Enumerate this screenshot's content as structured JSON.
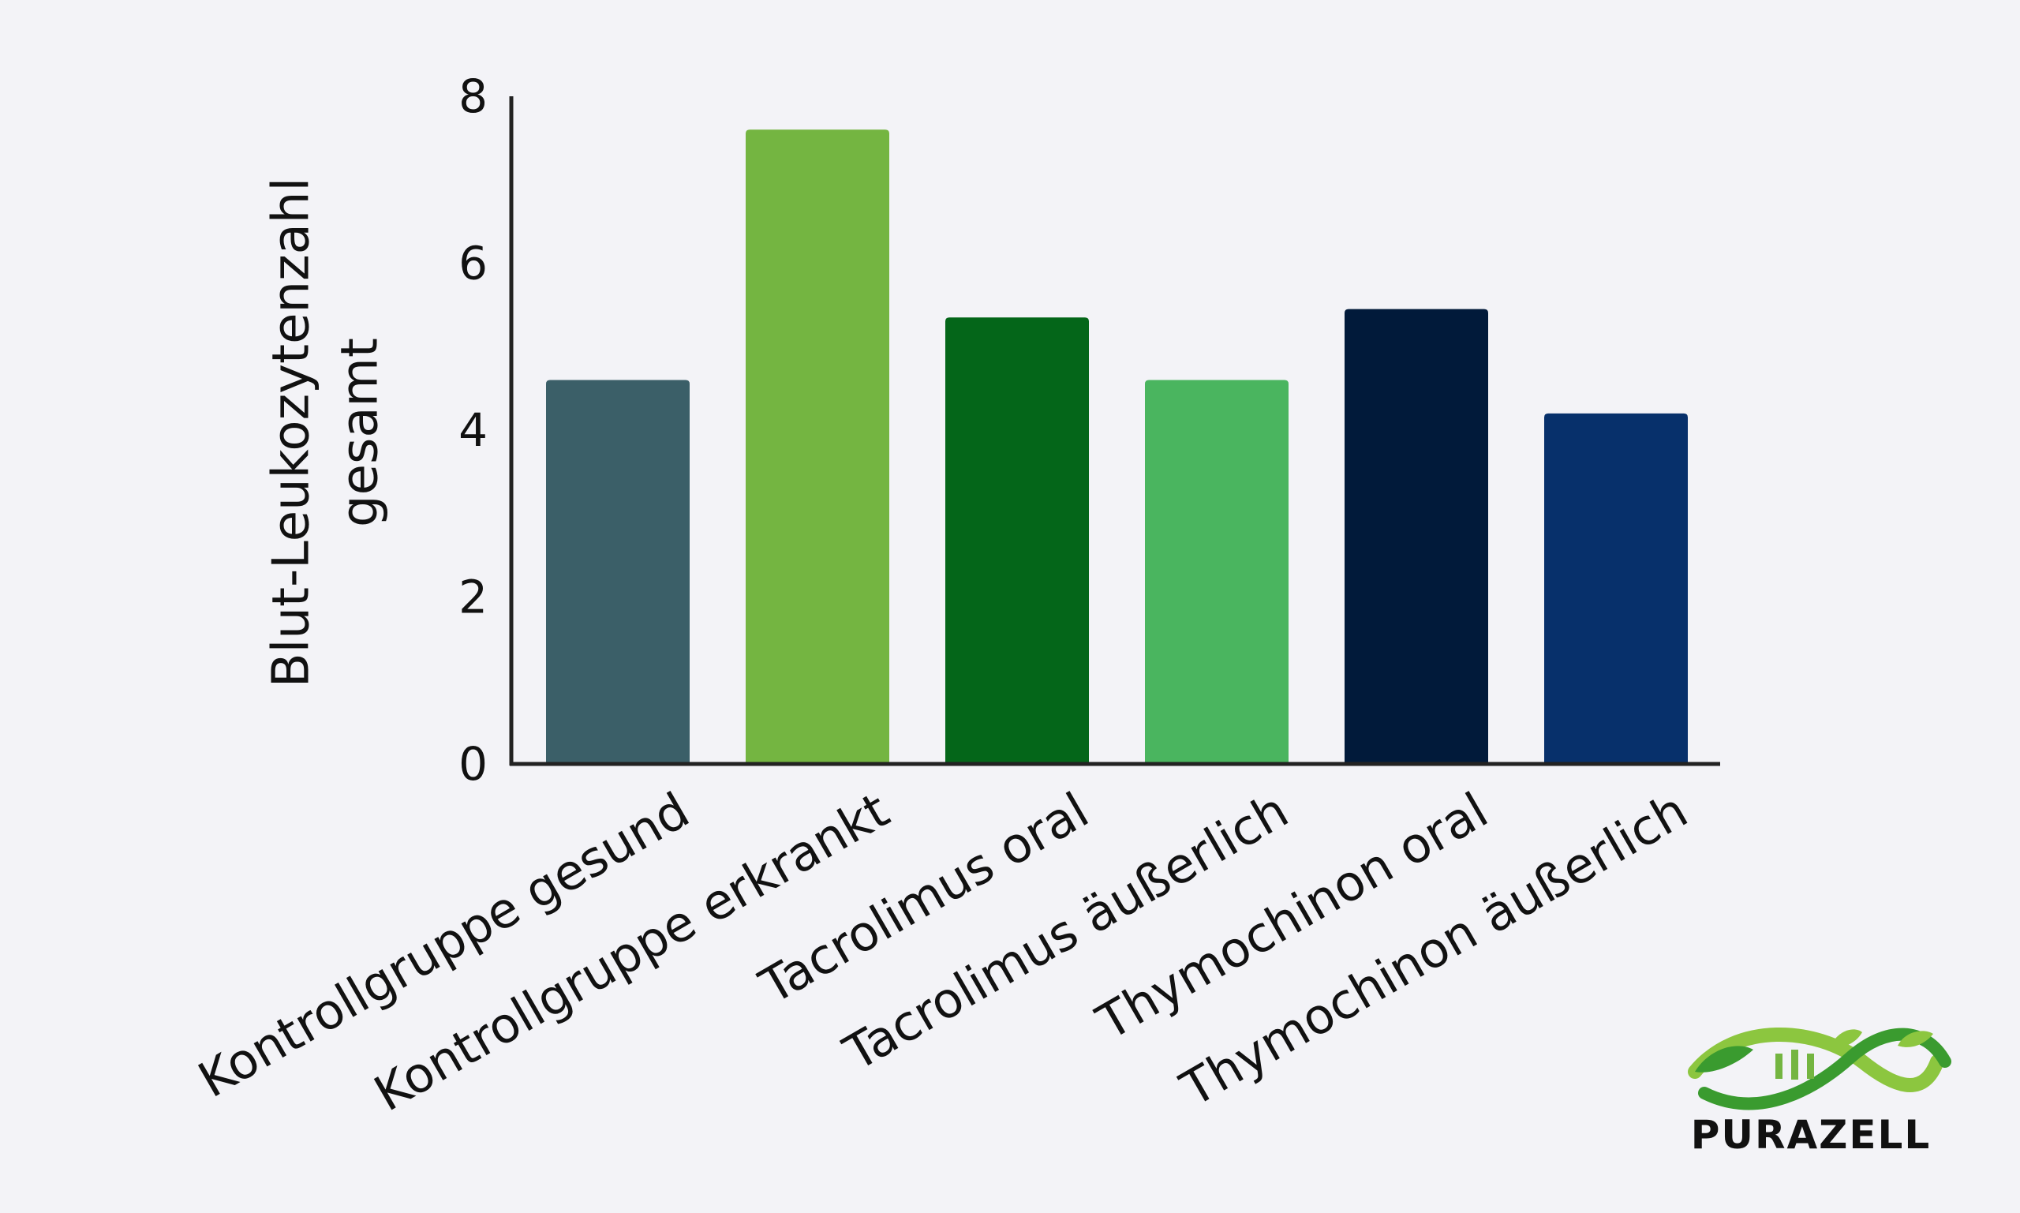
{
  "chart_data": {
    "type": "bar",
    "categories": [
      "Kontrollgruppe gesund",
      "Kontrollgruppe erkrankt",
      "Tacrolimus oral",
      "Tacrolimus äußerlich",
      "Thymochinon oral",
      "Thymochinon äußerlich"
    ],
    "values": [
      4.6,
      7.6,
      5.35,
      4.6,
      5.45,
      4.2
    ],
    "colors": [
      "#3b5f68",
      "#74b541",
      "#046619",
      "#4ab55f",
      "#011a3a",
      "#07306b"
    ],
    "ylabel": [
      "Blut-Leukozytenzahl",
      "gesamt"
    ],
    "ylim": [
      0,
      8
    ],
    "yticks": [
      0,
      2,
      4,
      6,
      8
    ],
    "grid": false
  },
  "logo": {
    "text": "PURAZELL",
    "icon": "dna-leaf-icon",
    "colors": [
      "#8cc63f",
      "#3a9b2f"
    ]
  }
}
